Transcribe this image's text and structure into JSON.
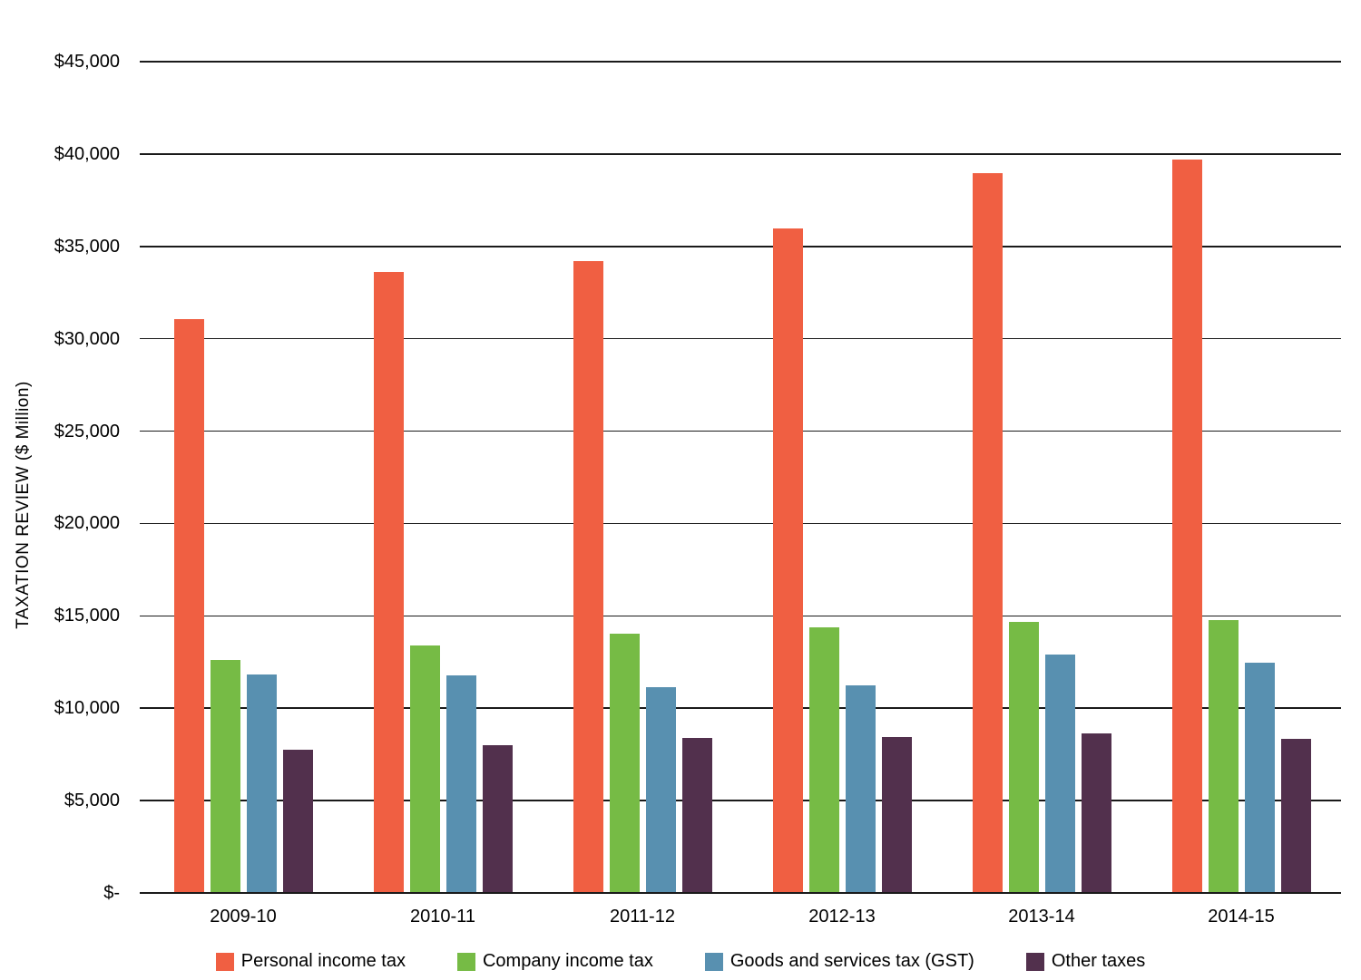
{
  "chart_data": {
    "type": "bar",
    "title": "",
    "xlabel": "",
    "ylabel": "TAXATION REVIEW ($ Million)",
    "ylim": [
      0,
      45000
    ],
    "ytick_step": 5000,
    "ytick_labels": [
      "$-",
      "$5,000",
      "$10,000",
      "$15,000",
      "$20,000",
      "$25,000",
      "$30,000",
      "$35,000",
      "$40,000",
      "$45,000"
    ],
    "grid": true,
    "legend_position": "bottom",
    "categories": [
      "2009-10",
      "2010-11",
      "2011-12",
      "2012-13",
      "2013-14",
      "2014-15"
    ],
    "series": [
      {
        "name": "Personal income tax",
        "color": "#F05F42",
        "values": [
          31050,
          33600,
          34200,
          35950,
          38950,
          39700
        ]
      },
      {
        "name": "Company income tax",
        "color": "#76BB45",
        "values": [
          12600,
          13400,
          14050,
          14400,
          14650,
          14750
        ]
      },
      {
        "name": "Goods and services tax (GST)",
        "color": "#5890B0",
        "values": [
          11850,
          11800,
          11150,
          11250,
          12900,
          12450
        ]
      },
      {
        "name": "Other taxes",
        "color": "#52304D",
        "values": [
          7750,
          8000,
          8400,
          8450,
          8650,
          8350
        ]
      }
    ]
  },
  "colors": {
    "gridline": "#1a1a1a",
    "text": "#000000",
    "background": "#ffffff"
  }
}
